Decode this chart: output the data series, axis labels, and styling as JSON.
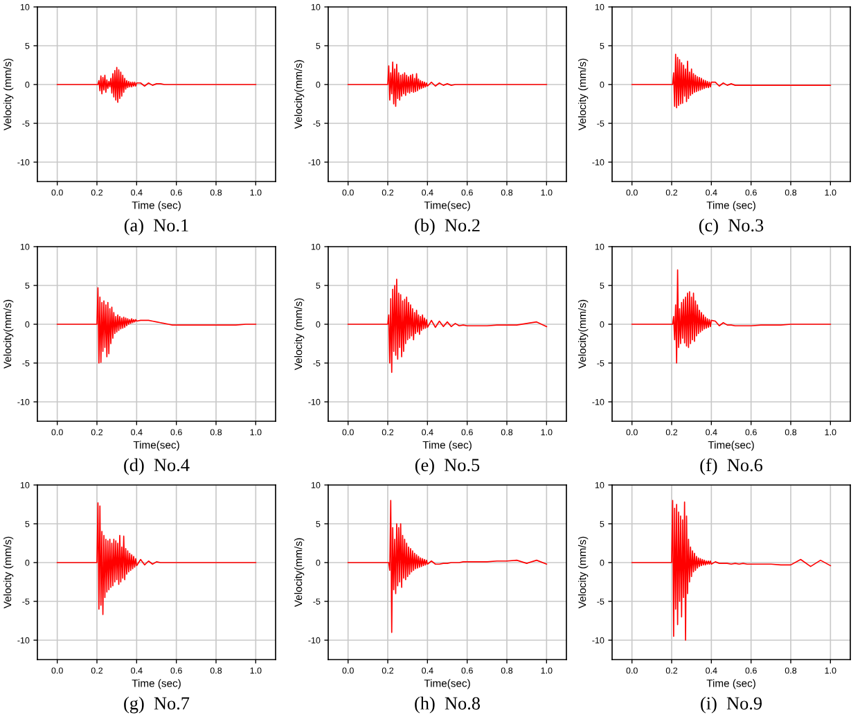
{
  "chart_data": [
    {
      "type": "line",
      "title": "(a)  No.1",
      "xlabel": "Time (sec)",
      "ylabel": "Velocity (mm/s)",
      "x": [
        0,
        0.1,
        0.195,
        0.2,
        0.205,
        0.21,
        0.215,
        0.22,
        0.225,
        0.23,
        0.235,
        0.24,
        0.245,
        0.25,
        0.255,
        0.26,
        0.265,
        0.27,
        0.275,
        0.28,
        0.285,
        0.29,
        0.295,
        0.3,
        0.305,
        0.31,
        0.315,
        0.32,
        0.325,
        0.33,
        0.335,
        0.34,
        0.345,
        0.35,
        0.355,
        0.36,
        0.365,
        0.37,
        0.375,
        0.38,
        0.385,
        0.39,
        0.395,
        0.4,
        0.42,
        0.44,
        0.46,
        0.48,
        0.5,
        0.52,
        0.54,
        0.56,
        0.58,
        0.6,
        0.65,
        0.7,
        0.75,
        0.8,
        0.85,
        0.9,
        0.95,
        1.0
      ],
      "series": [
        {
          "color": "#ff0000",
          "values": [
            0,
            0,
            0,
            0,
            0,
            0.5,
            -0.8,
            1.1,
            -1.2,
            0.9,
            -0.7,
            1.2,
            -1.0,
            0.6,
            -0.5,
            0.4,
            -0.3,
            0.8,
            -1.1,
            1.4,
            -1.6,
            1.8,
            -2.0,
            2.2,
            -2.3,
            1.9,
            -1.8,
            1.6,
            -1.5,
            1.2,
            -1.0,
            0.8,
            -0.6,
            0.5,
            -0.4,
            0.4,
            -0.3,
            0.3,
            -0.3,
            0.3,
            -0.2,
            0.3,
            -0.2,
            0.2,
            0.2,
            -0.2,
            0.2,
            -0.1,
            0.1,
            0.1,
            0,
            0,
            0,
            0,
            0,
            0,
            0,
            0,
            0,
            0,
            0,
            0
          ]
        }
      ],
      "xlim": [
        -0.1,
        1.1
      ],
      "ylim": [
        -12.5,
        10
      ],
      "xticks": [
        {
          "value": 0,
          "label": "0.0"
        },
        {
          "value": 0.2,
          "label": "0.2"
        },
        {
          "value": 0.4,
          "label": "0.4"
        },
        {
          "value": 0.6,
          "label": "0.6"
        },
        {
          "value": 0.8,
          "label": "0.8"
        },
        {
          "value": 1,
          "label": "1.0"
        }
      ],
      "yticks": [
        -10,
        -5,
        0,
        5,
        10
      ],
      "grid": true
    },
    {
      "type": "line",
      "title": "(b)  No.2",
      "xlabel": "Time(sec)",
      "ylabel": "Velocity(mm/s)",
      "x": [
        0,
        0.1,
        0.195,
        0.2,
        0.205,
        0.21,
        0.215,
        0.22,
        0.225,
        0.23,
        0.235,
        0.24,
        0.245,
        0.25,
        0.255,
        0.26,
        0.265,
        0.27,
        0.275,
        0.28,
        0.285,
        0.29,
        0.295,
        0.3,
        0.305,
        0.31,
        0.315,
        0.32,
        0.325,
        0.33,
        0.335,
        0.34,
        0.345,
        0.35,
        0.355,
        0.36,
        0.365,
        0.37,
        0.375,
        0.38,
        0.385,
        0.39,
        0.395,
        0.4,
        0.42,
        0.44,
        0.46,
        0.48,
        0.5,
        0.52,
        0.54,
        0.56,
        0.58,
        0.6,
        0.65,
        0.7,
        0.75,
        0.8,
        0.85,
        0.9,
        0.95,
        1.0
      ],
      "series": [
        {
          "color": "#ff0000",
          "values": [
            0,
            0,
            0,
            0,
            2.4,
            -2.0,
            1.5,
            -1.2,
            2.9,
            -2.5,
            2.0,
            -2.8,
            2.6,
            -1.8,
            1.5,
            -2.0,
            1.2,
            -1.5,
            1.3,
            -1.2,
            1.5,
            -1.4,
            1.2,
            -1.0,
            1.0,
            -1.1,
            1.2,
            -0.9,
            1.3,
            -1.0,
            0.8,
            -0.9,
            1.4,
            -0.8,
            0.7,
            -0.6,
            0.5,
            -0.5,
            0.4,
            -0.4,
            0.3,
            -0.3,
            0.2,
            -0.2,
            0.3,
            -0.2,
            0.2,
            -0.1,
            0.1,
            -0.1,
            0,
            0,
            0,
            0,
            0,
            0,
            0,
            0,
            0,
            0,
            0,
            0
          ]
        }
      ],
      "xlim": [
        -0.1,
        1.1
      ],
      "ylim": [
        -12.5,
        10
      ],
      "xticks": [
        {
          "value": 0,
          "label": "0.0"
        },
        {
          "value": 0.2,
          "label": "0.2"
        },
        {
          "value": 0.4,
          "label": "0.4"
        },
        {
          "value": 0.6,
          "label": "0.6"
        },
        {
          "value": 0.8,
          "label": "0.8"
        },
        {
          "value": 1,
          "label": "1.0"
        }
      ],
      "yticks": [
        -10,
        -5,
        0,
        5,
        10
      ],
      "grid": true
    },
    {
      "type": "line",
      "title": "(c)  No.3",
      "xlabel": "Time (sec)",
      "ylabel": "Velocity (mm/s)",
      "x": [
        0,
        0.1,
        0.195,
        0.2,
        0.205,
        0.21,
        0.215,
        0.22,
        0.225,
        0.23,
        0.235,
        0.24,
        0.245,
        0.25,
        0.255,
        0.26,
        0.265,
        0.27,
        0.275,
        0.28,
        0.285,
        0.29,
        0.295,
        0.3,
        0.305,
        0.31,
        0.315,
        0.32,
        0.325,
        0.33,
        0.335,
        0.34,
        0.345,
        0.35,
        0.355,
        0.36,
        0.365,
        0.37,
        0.375,
        0.38,
        0.385,
        0.39,
        0.395,
        0.4,
        0.42,
        0.44,
        0.46,
        0.48,
        0.5,
        0.52,
        0.54,
        0.56,
        0.58,
        0.6,
        0.65,
        0.7,
        0.75,
        0.8,
        0.85,
        0.9,
        0.95,
        1.0
      ],
      "series": [
        {
          "color": "#ff0000",
          "values": [
            0,
            0,
            0,
            0,
            0,
            1.5,
            -2.8,
            3.9,
            -3.0,
            3.5,
            -2.7,
            3.2,
            -2.5,
            2.8,
            -2.4,
            2.5,
            -1.5,
            2.0,
            -2.2,
            3.0,
            -1.8,
            1.6,
            -1.4,
            2.0,
            -1.2,
            1.4,
            -1.0,
            1.2,
            -0.9,
            1.0,
            -0.8,
            0.9,
            -0.7,
            0.8,
            -0.6,
            0.6,
            -0.5,
            0.5,
            -0.4,
            0.4,
            -0.4,
            0.3,
            -0.3,
            0.3,
            0.3,
            -0.2,
            0.2,
            -0.1,
            0.1,
            -0.1,
            -0.1,
            -0.1,
            -0.1,
            -0.1,
            -0.1,
            -0.1,
            -0.1,
            -0.1,
            -0.1,
            -0.1,
            -0.1,
            -0.1
          ]
        }
      ],
      "xlim": [
        -0.1,
        1.1
      ],
      "ylim": [
        -12.5,
        10
      ],
      "xticks": [
        {
          "value": 0,
          "label": "0.0"
        },
        {
          "value": 0.2,
          "label": "0.2"
        },
        {
          "value": 0.4,
          "label": "0.4"
        },
        {
          "value": 0.6,
          "label": "0.6"
        },
        {
          "value": 0.8,
          "label": "0.8"
        },
        {
          "value": 1,
          "label": "1.0"
        }
      ],
      "yticks": [
        -10,
        -5,
        0,
        5,
        10
      ],
      "grid": true
    },
    {
      "type": "line",
      "title": "(d)  No.4",
      "xlabel": "Time(sec)",
      "ylabel": "Velocity(mm/s)",
      "x": [
        0,
        0.1,
        0.195,
        0.2,
        0.205,
        0.21,
        0.215,
        0.22,
        0.225,
        0.23,
        0.235,
        0.24,
        0.245,
        0.25,
        0.255,
        0.26,
        0.265,
        0.27,
        0.275,
        0.28,
        0.285,
        0.29,
        0.295,
        0.3,
        0.305,
        0.31,
        0.315,
        0.32,
        0.325,
        0.33,
        0.335,
        0.34,
        0.345,
        0.35,
        0.355,
        0.36,
        0.365,
        0.37,
        0.375,
        0.38,
        0.385,
        0.39,
        0.395,
        0.4,
        0.42,
        0.44,
        0.46,
        0.48,
        0.5,
        0.52,
        0.54,
        0.56,
        0.58,
        0.6,
        0.65,
        0.7,
        0.75,
        0.8,
        0.85,
        0.9,
        0.95,
        1.0
      ],
      "series": [
        {
          "color": "#ff0000",
          "values": [
            0,
            0,
            0,
            0,
            4.7,
            -5.0,
            3.5,
            -4.9,
            2.8,
            -3.5,
            3.0,
            -3.0,
            2.5,
            -4.2,
            2.8,
            -3.8,
            2.0,
            -2.5,
            2.2,
            -1.8,
            1.5,
            -1.2,
            1.0,
            -1.0,
            1.2,
            -0.8,
            1.0,
            -0.6,
            0.8,
            -0.5,
            0.9,
            -0.4,
            0.8,
            -0.2,
            0.7,
            0,
            0.6,
            0.1,
            0.7,
            0.2,
            0.6,
            0.3,
            0.6,
            0.4,
            0.5,
            0.5,
            0.5,
            0.4,
            0.3,
            0.2,
            0.1,
            0,
            -0.1,
            -0.1,
            -0.1,
            -0.1,
            -0.1,
            -0.1,
            -0.1,
            -0.1,
            0,
            0
          ]
        }
      ],
      "xlim": [
        -0.1,
        1.1
      ],
      "ylim": [
        -12.5,
        10
      ],
      "xticks": [
        {
          "value": 0,
          "label": "0.0"
        },
        {
          "value": 0.2,
          "label": "0.2"
        },
        {
          "value": 0.4,
          "label": "0.4"
        },
        {
          "value": 0.6,
          "label": "0.6"
        },
        {
          "value": 0.8,
          "label": "0.8"
        },
        {
          "value": 1,
          "label": "1.0"
        }
      ],
      "yticks": [
        -10,
        -5,
        0,
        5,
        10
      ],
      "grid": true
    },
    {
      "type": "line",
      "title": "(e)  No.5",
      "xlabel": "Time (sec)",
      "ylabel": "Velocity (mm/s)",
      "x": [
        0,
        0.1,
        0.195,
        0.2,
        0.205,
        0.21,
        0.215,
        0.22,
        0.225,
        0.23,
        0.235,
        0.24,
        0.245,
        0.25,
        0.255,
        0.26,
        0.265,
        0.27,
        0.275,
        0.28,
        0.285,
        0.29,
        0.295,
        0.3,
        0.305,
        0.31,
        0.315,
        0.32,
        0.325,
        0.33,
        0.335,
        0.34,
        0.345,
        0.35,
        0.355,
        0.36,
        0.365,
        0.37,
        0.375,
        0.38,
        0.385,
        0.39,
        0.395,
        0.4,
        0.42,
        0.44,
        0.46,
        0.48,
        0.5,
        0.52,
        0.54,
        0.56,
        0.58,
        0.6,
        0.65,
        0.7,
        0.75,
        0.8,
        0.85,
        0.9,
        0.95,
        1.0
      ],
      "series": [
        {
          "color": "#ff0000",
          "values": [
            0,
            0,
            0,
            0,
            1.2,
            -5.0,
            3.3,
            -6.2,
            4.5,
            -3.5,
            5.0,
            -4.0,
            5.8,
            -4.5,
            4.0,
            -3.0,
            3.8,
            -4.2,
            3.0,
            -3.5,
            3.2,
            -2.5,
            3.5,
            -2.0,
            2.8,
            -1.8,
            2.5,
            -1.5,
            2.0,
            -2.0,
            1.5,
            -1.2,
            1.8,
            -1.0,
            1.2,
            -1.3,
            1.0,
            -0.8,
            1.2,
            -0.6,
            0.8,
            -0.5,
            0.6,
            -0.4,
            0.5,
            -0.4,
            0.4,
            -0.3,
            0.3,
            -0.3,
            0.1,
            -0.2,
            -0.1,
            -0.2,
            -0.2,
            -0.2,
            -0.1,
            -0.1,
            -0.1,
            0.1,
            0.3,
            -0.3
          ]
        }
      ],
      "xlim": [
        -0.1,
        1.1
      ],
      "ylim": [
        -12.5,
        10
      ],
      "xticks": [
        {
          "value": 0,
          "label": "0.0"
        },
        {
          "value": 0.2,
          "label": "0.2"
        },
        {
          "value": 0.4,
          "label": "0.4"
        },
        {
          "value": 0.6,
          "label": "0.6"
        },
        {
          "value": 0.8,
          "label": "0.8"
        },
        {
          "value": 1,
          "label": "1.0"
        }
      ],
      "yticks": [
        -10,
        -5,
        0,
        5,
        10
      ],
      "grid": true
    },
    {
      "type": "line",
      "title": "(f)  No.6",
      "xlabel": "Time(sec)",
      "ylabel": "Velocity(mm/s)",
      "x": [
        0,
        0.1,
        0.195,
        0.2,
        0.205,
        0.21,
        0.215,
        0.22,
        0.225,
        0.23,
        0.235,
        0.24,
        0.245,
        0.25,
        0.255,
        0.26,
        0.265,
        0.27,
        0.275,
        0.28,
        0.285,
        0.29,
        0.295,
        0.3,
        0.305,
        0.31,
        0.315,
        0.32,
        0.325,
        0.33,
        0.335,
        0.34,
        0.345,
        0.35,
        0.355,
        0.36,
        0.365,
        0.37,
        0.375,
        0.38,
        0.385,
        0.39,
        0.395,
        0.4,
        0.42,
        0.44,
        0.46,
        0.48,
        0.5,
        0.52,
        0.54,
        0.56,
        0.58,
        0.6,
        0.65,
        0.7,
        0.75,
        0.8,
        0.85,
        0.9,
        0.95,
        1.0
      ],
      "series": [
        {
          "color": "#ff0000",
          "values": [
            0,
            0,
            0,
            0,
            0,
            1.0,
            -2.0,
            2.5,
            -5.0,
            7.0,
            -3.0,
            2.0,
            -2.5,
            2.8,
            -1.8,
            3.2,
            -2.4,
            3.5,
            -2.8,
            4.0,
            -3.0,
            4.2,
            -2.5,
            3.5,
            -2.0,
            4.0,
            -2.2,
            3.0,
            -1.5,
            2.5,
            -1.2,
            1.8,
            -1.0,
            1.5,
            -0.8,
            1.2,
            -0.6,
            0.9,
            -0.5,
            0.7,
            -0.4,
            0.6,
            -0.3,
            0.5,
            0.4,
            -0.2,
            0.2,
            -0.1,
            -0.1,
            -0.2,
            -0.2,
            -0.2,
            -0.2,
            -0.2,
            -0.1,
            -0.1,
            -0.1,
            0,
            0,
            0,
            0,
            0
          ]
        }
      ],
      "xlim": [
        -0.1,
        1.1
      ],
      "ylim": [
        -12.5,
        10
      ],
      "xticks": [
        {
          "value": 0,
          "label": "0.0"
        },
        {
          "value": 0.2,
          "label": "0.2"
        },
        {
          "value": 0.4,
          "label": "0.4"
        },
        {
          "value": 0.6,
          "label": "0.6"
        },
        {
          "value": 0.8,
          "label": "0.8"
        },
        {
          "value": 1,
          "label": "1.0"
        }
      ],
      "yticks": [
        -10,
        -5,
        0,
        5,
        10
      ],
      "grid": true
    },
    {
      "type": "line",
      "title": "(g)  No.7",
      "xlabel": "Time (sec)",
      "ylabel": "Velocity (mm/s)",
      "x": [
        0,
        0.1,
        0.195,
        0.2,
        0.205,
        0.21,
        0.215,
        0.22,
        0.225,
        0.23,
        0.235,
        0.24,
        0.245,
        0.25,
        0.255,
        0.26,
        0.265,
        0.27,
        0.275,
        0.28,
        0.285,
        0.29,
        0.295,
        0.3,
        0.305,
        0.31,
        0.315,
        0.32,
        0.325,
        0.33,
        0.335,
        0.34,
        0.345,
        0.35,
        0.355,
        0.36,
        0.365,
        0.37,
        0.375,
        0.38,
        0.385,
        0.39,
        0.395,
        0.4,
        0.42,
        0.44,
        0.46,
        0.48,
        0.5,
        0.52,
        0.54,
        0.56,
        0.58,
        0.6,
        0.65,
        0.7,
        0.75,
        0.8,
        0.85,
        0.9,
        0.95,
        1.0
      ],
      "series": [
        {
          "color": "#ff0000",
          "values": [
            0,
            0,
            0,
            0,
            7.7,
            -6.0,
            7.3,
            -5.5,
            4.0,
            -6.7,
            3.5,
            -4.5,
            3.0,
            -3.8,
            2.8,
            -3.5,
            3.0,
            -3.2,
            2.5,
            -3.0,
            3.0,
            -2.5,
            2.8,
            -2.2,
            2.5,
            -2.8,
            3.5,
            -2.5,
            2.0,
            -2.0,
            3.4,
            -2.2,
            1.8,
            -1.5,
            1.5,
            -1.2,
            1.2,
            -1.0,
            1.0,
            -0.8,
            0.8,
            -0.6,
            0.5,
            -0.4,
            0.4,
            -0.3,
            0.2,
            -0.2,
            0.1,
            0,
            0,
            0,
            0,
            0,
            0,
            0,
            0,
            0,
            0,
            0,
            0,
            0
          ]
        }
      ],
      "xlim": [
        -0.1,
        1.1
      ],
      "ylim": [
        -12.5,
        10
      ],
      "xticks": [
        {
          "value": 0,
          "label": "0.0"
        },
        {
          "value": 0.2,
          "label": "0.2"
        },
        {
          "value": 0.4,
          "label": "0.4"
        },
        {
          "value": 0.6,
          "label": "0.6"
        },
        {
          "value": 0.8,
          "label": "0.8"
        },
        {
          "value": 1,
          "label": "1.0"
        }
      ],
      "yticks": [
        -10,
        -5,
        0,
        5,
        10
      ],
      "grid": true
    },
    {
      "type": "line",
      "title": "(h)  No.8",
      "xlabel": "Time(sec)",
      "ylabel": "Velocity(mm/s)",
      "x": [
        0,
        0.1,
        0.195,
        0.2,
        0.205,
        0.21,
        0.215,
        0.22,
        0.225,
        0.23,
        0.235,
        0.24,
        0.245,
        0.25,
        0.255,
        0.26,
        0.265,
        0.27,
        0.275,
        0.28,
        0.285,
        0.29,
        0.295,
        0.3,
        0.305,
        0.31,
        0.315,
        0.32,
        0.325,
        0.33,
        0.335,
        0.34,
        0.345,
        0.35,
        0.355,
        0.36,
        0.365,
        0.37,
        0.375,
        0.38,
        0.385,
        0.39,
        0.395,
        0.4,
        0.42,
        0.44,
        0.46,
        0.48,
        0.5,
        0.52,
        0.54,
        0.56,
        0.58,
        0.6,
        0.65,
        0.7,
        0.75,
        0.8,
        0.85,
        0.9,
        0.95,
        1.0
      ],
      "series": [
        {
          "color": "#ff0000",
          "values": [
            0,
            0,
            0,
            0,
            0,
            -1.0,
            8.0,
            -9.0,
            4.5,
            -3.5,
            3.0,
            -4.0,
            5.0,
            -3.0,
            4.5,
            -2.5,
            5.0,
            -3.2,
            3.5,
            -2.0,
            3.0,
            -2.2,
            2.5,
            -1.8,
            2.0,
            -1.5,
            1.8,
            -1.2,
            1.5,
            -1.0,
            1.2,
            -0.8,
            1.0,
            -0.7,
            0.8,
            -0.6,
            0.6,
            -0.5,
            0.5,
            -0.4,
            0.4,
            -0.3,
            0.3,
            -0.2,
            0.2,
            -0.2,
            -0.2,
            -0.1,
            -0.1,
            0,
            0,
            0,
            0.1,
            0.1,
            0.1,
            0.1,
            0.2,
            0.2,
            0.3,
            -0.1,
            0.3,
            -0.2
          ]
        }
      ],
      "xlim": [
        -0.1,
        1.1
      ],
      "ylim": [
        -12.5,
        10
      ],
      "xticks": [
        {
          "value": 0,
          "label": "0.0"
        },
        {
          "value": 0.2,
          "label": "0.2"
        },
        {
          "value": 0.4,
          "label": "0.4"
        },
        {
          "value": 0.6,
          "label": "0.6"
        },
        {
          "value": 0.8,
          "label": "0.8"
        },
        {
          "value": 1,
          "label": "1.0"
        }
      ],
      "yticks": [
        -10,
        -5,
        0,
        5,
        10
      ],
      "grid": true
    },
    {
      "type": "line",
      "title": "(i)  No.9",
      "xlabel": "Time (sec)",
      "ylabel": "Velocity (mm/s)",
      "x": [
        0,
        0.1,
        0.195,
        0.2,
        0.205,
        0.21,
        0.215,
        0.22,
        0.225,
        0.23,
        0.235,
        0.24,
        0.245,
        0.25,
        0.255,
        0.26,
        0.265,
        0.27,
        0.275,
        0.28,
        0.285,
        0.29,
        0.295,
        0.3,
        0.305,
        0.31,
        0.315,
        0.32,
        0.325,
        0.33,
        0.335,
        0.34,
        0.345,
        0.35,
        0.355,
        0.36,
        0.365,
        0.37,
        0.375,
        0.38,
        0.385,
        0.39,
        0.395,
        0.4,
        0.42,
        0.44,
        0.46,
        0.48,
        0.5,
        0.52,
        0.54,
        0.56,
        0.58,
        0.6,
        0.65,
        0.7,
        0.75,
        0.8,
        0.85,
        0.9,
        0.95,
        1.0
      ],
      "series": [
        {
          "color": "#ff0000",
          "values": [
            0,
            0,
            0,
            0,
            8.0,
            -9.5,
            7.0,
            -6.0,
            7.5,
            -8.0,
            6.5,
            -5.0,
            6.0,
            -7.0,
            5.5,
            -4.5,
            7.8,
            -10.0,
            6.0,
            -4.0,
            3.0,
            -2.5,
            2.0,
            -1.8,
            1.5,
            -1.2,
            1.2,
            -1.0,
            0.8,
            -0.7,
            0.6,
            -0.5,
            0.5,
            -0.4,
            0.4,
            -0.3,
            0.3,
            -0.3,
            0.2,
            -0.2,
            0.2,
            -0.2,
            0.2,
            -0.2,
            0.1,
            -0.1,
            -0.1,
            -0.1,
            -0.2,
            -0.1,
            -0.2,
            -0.1,
            -0.2,
            -0.2,
            -0.2,
            -0.2,
            -0.3,
            -0.3,
            0.4,
            -0.5,
            0.3,
            -0.4
          ]
        }
      ],
      "xlim": [
        -0.1,
        1.1
      ],
      "ylim": [
        -12.5,
        10
      ],
      "xticks": [
        {
          "value": 0,
          "label": "0.0"
        },
        {
          "value": 0.2,
          "label": "0.2"
        },
        {
          "value": 0.4,
          "label": "0.4"
        },
        {
          "value": 0.6,
          "label": "0.6"
        },
        {
          "value": 0.8,
          "label": "0.8"
        },
        {
          "value": 1,
          "label": "1.0"
        }
      ],
      "yticks": [
        -10,
        -5,
        0,
        5,
        10
      ],
      "grid": true
    }
  ]
}
